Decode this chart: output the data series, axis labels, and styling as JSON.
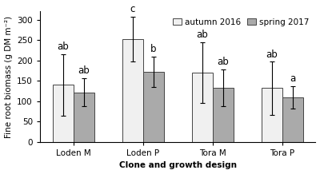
{
  "categories": [
    "Loden M",
    "Loden P",
    "Tora M",
    "Tora P"
  ],
  "autumn_2016": [
    140,
    252,
    170,
    132
  ],
  "spring_2017": [
    122,
    172,
    133,
    109
  ],
  "autumn_err": [
    75,
    55,
    75,
    65
  ],
  "spring_err": [
    35,
    38,
    45,
    28
  ],
  "autumn_labels": [
    "ab",
    "c",
    "ab",
    "ab"
  ],
  "spring_labels": [
    "ab",
    "b",
    "ab",
    "a"
  ],
  "ylabel": "Fine root biomass (g DM m⁻²)",
  "xlabel": "Clone and growth design",
  "ylim": [
    0,
    320
  ],
  "yticks": [
    0,
    50,
    100,
    150,
    200,
    250,
    300
  ],
  "legend_autumn": "autumn 2016",
  "legend_spring": "spring 2017",
  "bar_width": 0.3,
  "autumn_color": "#f0f0f0",
  "spring_color": "#aaaaaa",
  "edge_color": "#444444",
  "label_fontsize": 7.5,
  "tick_fontsize": 7.5,
  "annot_fontsize": 8.5,
  "legend_fontsize": 7.5
}
